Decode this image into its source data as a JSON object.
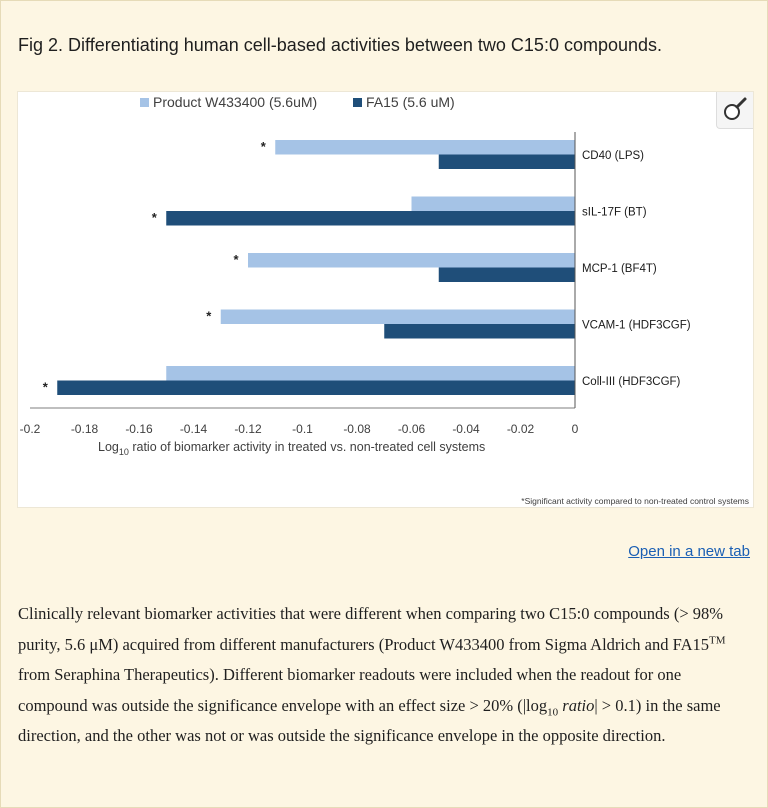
{
  "figure": {
    "title": "Fig 2. Differentiating human cell-based activities between two C15:0 compounds.",
    "open_link": "Open in a new tab"
  },
  "caption": {
    "part1": "Clinically relevant biomarker activities that were different when comparing two C15:0 compounds (> 98% purity, 5.6 μM) acquired from different manufacturers (Product W433400 from Sigma Aldrich and FA15",
    "tm": "TM",
    "part2": " from Seraphina Therapeutics). Different biomarker readouts were included when the readout for one compound was outside the significance envelope with an effect size > 20% (|log",
    "sub10": "10",
    "ratio": " ratio",
    "part3": "| > 0.1) in the same direction, and the other was not or was outside the significance envelope in the opposite direction."
  },
  "chart_data": {
    "type": "bar",
    "orientation": "horizontal",
    "categories": [
      "CD40 (LPS)",
      "sIL-17F (BT)",
      "MCP-1 (BF4T)",
      "VCAM-1 (HDF3CGF)",
      "Coll-III (HDF3CGF)"
    ],
    "series": [
      {
        "name": "Product W433400 (5.6uM)",
        "color": "#a5c3e6",
        "values": [
          -0.11,
          -0.06,
          -0.12,
          -0.13,
          -0.15
        ]
      },
      {
        "name": "FA15 (5.6 uM)",
        "color": "#1f4e79",
        "values": [
          -0.05,
          -0.15,
          -0.05,
          -0.07,
          -0.19
        ]
      }
    ],
    "significance": [
      {
        "category": "CD40 (LPS)",
        "series": 0,
        "label": "*"
      },
      {
        "category": "sIL-17F (BT)",
        "series": 1,
        "label": "*"
      },
      {
        "category": "MCP-1 (BF4T)",
        "series": 0,
        "label": "*"
      },
      {
        "category": "VCAM-1 (HDF3CGF)",
        "series": 0,
        "label": "*"
      },
      {
        "category": "Coll-III (HDF3CGF)",
        "series": 1,
        "label": "*"
      }
    ],
    "xlim": [
      -0.2,
      0
    ],
    "xticks": [
      -0.2,
      -0.18,
      -0.16,
      -0.14,
      -0.12,
      -0.1,
      -0.08,
      -0.06,
      -0.04,
      -0.02,
      0
    ],
    "xtick_labels": [
      "-0.2",
      "-0.18",
      "-0.16",
      "-0.14",
      "-0.12",
      "-0.1",
      "-0.08",
      "-0.06",
      "-0.04",
      "-0.02",
      "0"
    ],
    "xlabel_prefix": "Log",
    "xlabel_sub": "10",
    "xlabel_rest": " ratio of biomarker activity in treated vs. non-treated cell systems",
    "legend_position": "top-left",
    "footnote": "*Significant activity compared to non-treated control systems",
    "grid": false
  }
}
